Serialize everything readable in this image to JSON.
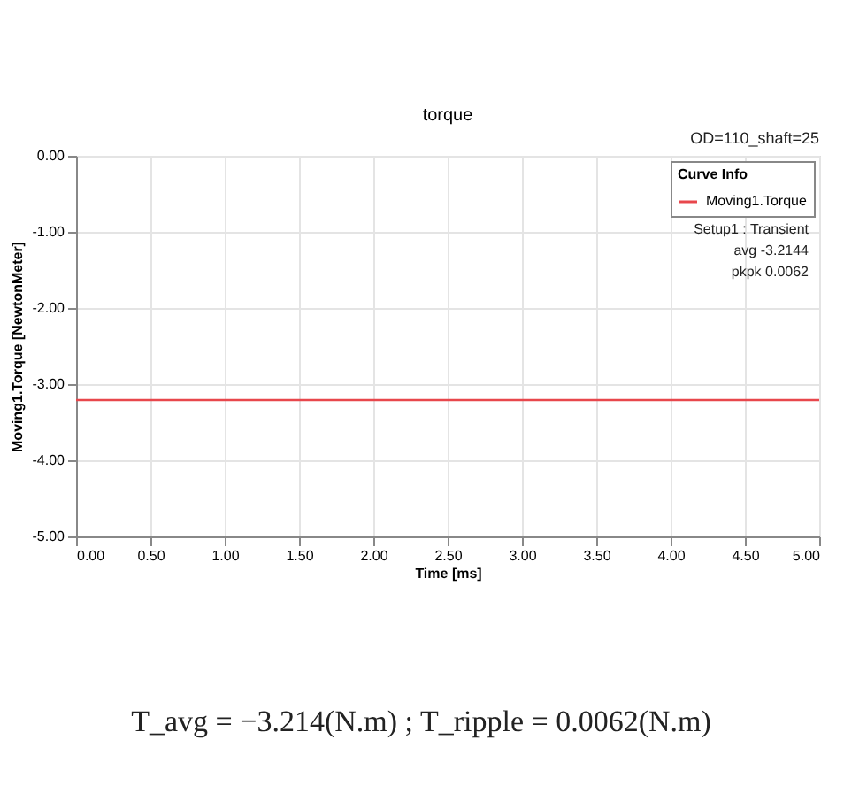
{
  "chart_data": {
    "type": "line",
    "title": "torque",
    "xlabel": "Time [ms]",
    "ylabel": "Moving1.Torque [NewtonMeter]",
    "x": [
      0,
      5
    ],
    "series": [
      {
        "name": "Moving1.Torque",
        "color": "#e8474c",
        "values": [
          -3.21,
          -3.21
        ]
      }
    ],
    "legend_title": "Curve Info",
    "legend": "top right",
    "xlim": [
      0,
      5
    ],
    "xticks": [
      {
        "value": 0,
        "label": "0.00"
      },
      {
        "value": 0.5,
        "label": "0.50"
      },
      {
        "value": 1,
        "label": "1.00"
      },
      {
        "value": 1.5,
        "label": "1.50"
      },
      {
        "value": 2,
        "label": "2.00"
      },
      {
        "value": 2.5,
        "label": "2.50"
      },
      {
        "value": 3,
        "label": "3.00"
      },
      {
        "value": 3.5,
        "label": "3.50"
      },
      {
        "value": 4,
        "label": "4.00"
      },
      {
        "value": 4.5,
        "label": "4.50"
      },
      {
        "value": 5,
        "label": "5.00"
      }
    ],
    "ylim": [
      -5,
      0
    ],
    "yticks": [
      {
        "value": -5,
        "label": "-5.00"
      },
      {
        "value": -4,
        "label": "-4.00"
      },
      {
        "value": -3,
        "label": "-3.00"
      },
      {
        "value": -2,
        "label": "-2.00"
      },
      {
        "value": -1,
        "label": "-1.00"
      },
      {
        "value": 0,
        "label": "0.00"
      }
    ],
    "grid": true,
    "annotations": [
      "OD=110_shaft=25",
      "Setup1 : Transient",
      "avg -3.2144",
      "pkpk 0.0062",
      "T_avg = −3.214(N.m) ; T_ripple = 0.0062(N.m)"
    ]
  }
}
